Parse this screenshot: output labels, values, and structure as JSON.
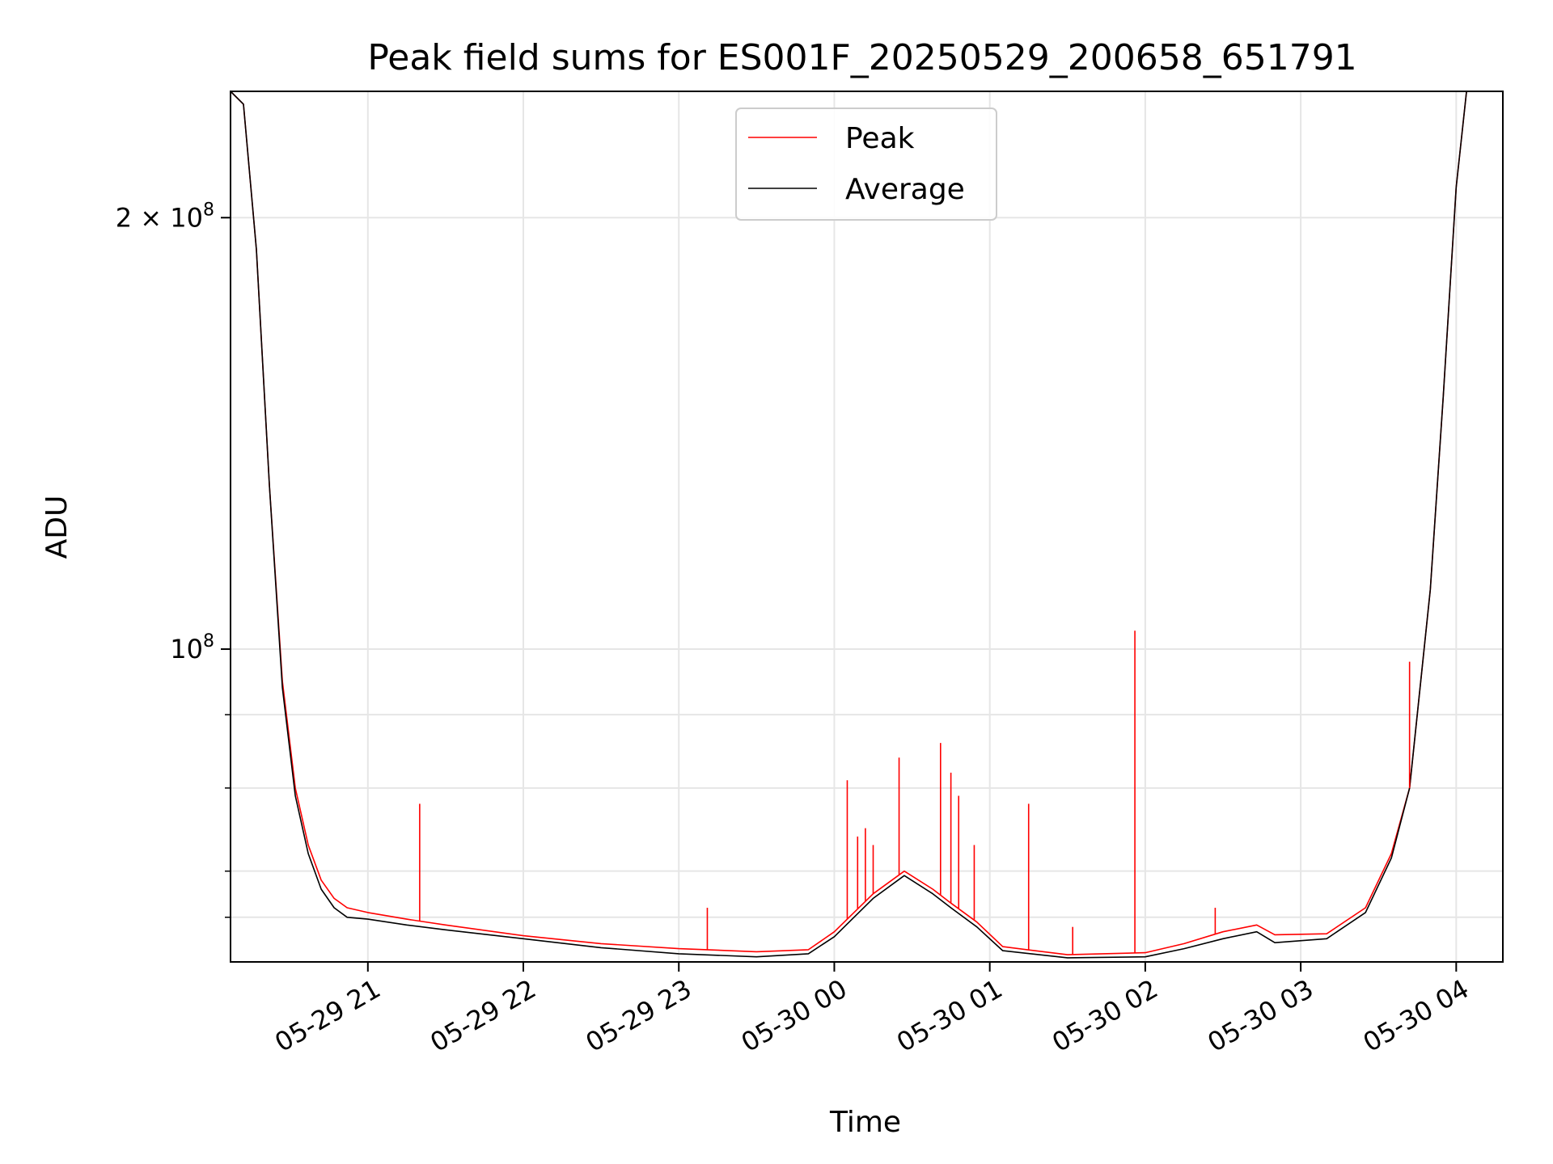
{
  "chart_data": {
    "type": "line",
    "title": "Peak field sums for ES001F_20250529_200658_651791",
    "xlabel": "Time",
    "ylabel": "ADU",
    "yscale": "log",
    "grid": true,
    "legend_position": "top-center",
    "xlim": [
      "2025-05-29 20:07",
      "2025-05-30 04:18"
    ],
    "ylim": [
      60500000,
      245000000
    ],
    "x_ticks": [
      "05-29 21",
      "05-29 22",
      "05-29 23",
      "05-30 00",
      "05-30 01",
      "05-30 02",
      "05-30 03",
      "05-30 04"
    ],
    "y_ticks": [
      {
        "value": 100000000,
        "base": "10",
        "exp": "8",
        "prefix": ""
      },
      {
        "value": 200000000,
        "base": "10",
        "exp": "8",
        "prefix": "2 × "
      }
    ],
    "y_minor_ticks": [
      65000000,
      70000000,
      80000000,
      90000000
    ],
    "series": [
      {
        "name": "Peak",
        "color": "#ff0000",
        "x": [
          "2025-05-29 20:07",
          "2025-05-29 20:12",
          "2025-05-29 20:17",
          "2025-05-29 20:22",
          "2025-05-29 20:27",
          "2025-05-29 20:32",
          "2025-05-29 20:37",
          "2025-05-29 20:42",
          "2025-05-29 20:47",
          "2025-05-29 20:52",
          "2025-05-29 21:00",
          "2025-05-29 21:15",
          "2025-05-29 21:30",
          "2025-05-29 22:00",
          "2025-05-29 22:30",
          "2025-05-29 23:00",
          "2025-05-29 23:30",
          "2025-05-29 23:50",
          "2025-05-30 00:00",
          "2025-05-30 00:15",
          "2025-05-30 00:27",
          "2025-05-30 00:38",
          "2025-05-30 00:45",
          "2025-05-30 00:55",
          "2025-05-30 01:05",
          "2025-05-30 01:30",
          "2025-05-30 02:00",
          "2025-05-30 02:15",
          "2025-05-30 02:30",
          "2025-05-30 02:43",
          "2025-05-30 02:50",
          "2025-05-30 03:10",
          "2025-05-30 03:25",
          "2025-05-30 03:35",
          "2025-05-30 03:42",
          "2025-05-30 03:50",
          "2025-05-30 03:55",
          "2025-05-30 04:00",
          "2025-05-30 04:04",
          "2025-05-30 04:18"
        ],
        "values": [
          245000000,
          240000000,
          190000000,
          130000000,
          95000000,
          80000000,
          73000000,
          69000000,
          67000000,
          66000000,
          65500000,
          64800000,
          64200000,
          63100000,
          62300000,
          61800000,
          61500000,
          61700000,
          63500000,
          67500000,
          70000000,
          68000000,
          66500000,
          64500000,
          62000000,
          61200000,
          61400000,
          62300000,
          63500000,
          64200000,
          63200000,
          63300000,
          66000000,
          72000000,
          80000000,
          110000000,
          150000000,
          210000000,
          245000000,
          245000000
        ],
        "spikes": [
          {
            "x": "2025-05-29 21:20",
            "value": 78000000
          },
          {
            "x": "2025-05-29 23:11",
            "value": 66000000
          },
          {
            "x": "2025-05-30 00:05",
            "value": 81000000
          },
          {
            "x": "2025-05-30 00:09",
            "value": 74000000
          },
          {
            "x": "2025-05-30 00:12",
            "value": 75000000
          },
          {
            "x": "2025-05-30 00:15",
            "value": 73000000
          },
          {
            "x": "2025-05-30 00:25",
            "value": 84000000
          },
          {
            "x": "2025-05-30 00:41",
            "value": 86000000
          },
          {
            "x": "2025-05-30 00:45",
            "value": 82000000
          },
          {
            "x": "2025-05-30 00:48",
            "value": 79000000
          },
          {
            "x": "2025-05-30 00:54",
            "value": 73000000
          },
          {
            "x": "2025-05-30 01:15",
            "value": 78000000
          },
          {
            "x": "2025-05-30 01:32",
            "value": 64000000
          },
          {
            "x": "2025-05-30 01:56",
            "value": 103000000
          },
          {
            "x": "2025-05-30 02:27",
            "value": 66000000
          },
          {
            "x": "2025-05-30 03:42",
            "value": 98000000
          }
        ]
      },
      {
        "name": "Average",
        "color": "#000000",
        "x": [
          "2025-05-29 20:07",
          "2025-05-29 20:12",
          "2025-05-29 20:17",
          "2025-05-29 20:22",
          "2025-05-29 20:27",
          "2025-05-29 20:32",
          "2025-05-29 20:37",
          "2025-05-29 20:42",
          "2025-05-29 20:47",
          "2025-05-29 20:52",
          "2025-05-29 21:00",
          "2025-05-29 21:15",
          "2025-05-29 21:30",
          "2025-05-29 22:00",
          "2025-05-29 22:30",
          "2025-05-29 23:00",
          "2025-05-29 23:30",
          "2025-05-29 23:50",
          "2025-05-30 00:00",
          "2025-05-30 00:15",
          "2025-05-30 00:27",
          "2025-05-30 00:38",
          "2025-05-30 00:45",
          "2025-05-30 00:55",
          "2025-05-30 01:05",
          "2025-05-30 01:30",
          "2025-05-30 02:00",
          "2025-05-30 02:15",
          "2025-05-30 02:30",
          "2025-05-30 02:43",
          "2025-05-30 02:50",
          "2025-05-30 03:10",
          "2025-05-30 03:25",
          "2025-05-30 03:35",
          "2025-05-30 03:42",
          "2025-05-30 03:50",
          "2025-05-30 03:55",
          "2025-05-30 04:00",
          "2025-05-30 04:04",
          "2025-05-30 04:18"
        ],
        "values": [
          245000000,
          240000000,
          190000000,
          130000000,
          94000000,
          79000000,
          72000000,
          68000000,
          66000000,
          65000000,
          64800000,
          64200000,
          63700000,
          62800000,
          61900000,
          61300000,
          61000000,
          61300000,
          63000000,
          67000000,
          69500000,
          67500000,
          66000000,
          64000000,
          61600000,
          60900000,
          61000000,
          61800000,
          62800000,
          63500000,
          62400000,
          62800000,
          65500000,
          71500000,
          80000000,
          110000000,
          150000000,
          210000000,
          245000000,
          245000000
        ]
      }
    ]
  }
}
